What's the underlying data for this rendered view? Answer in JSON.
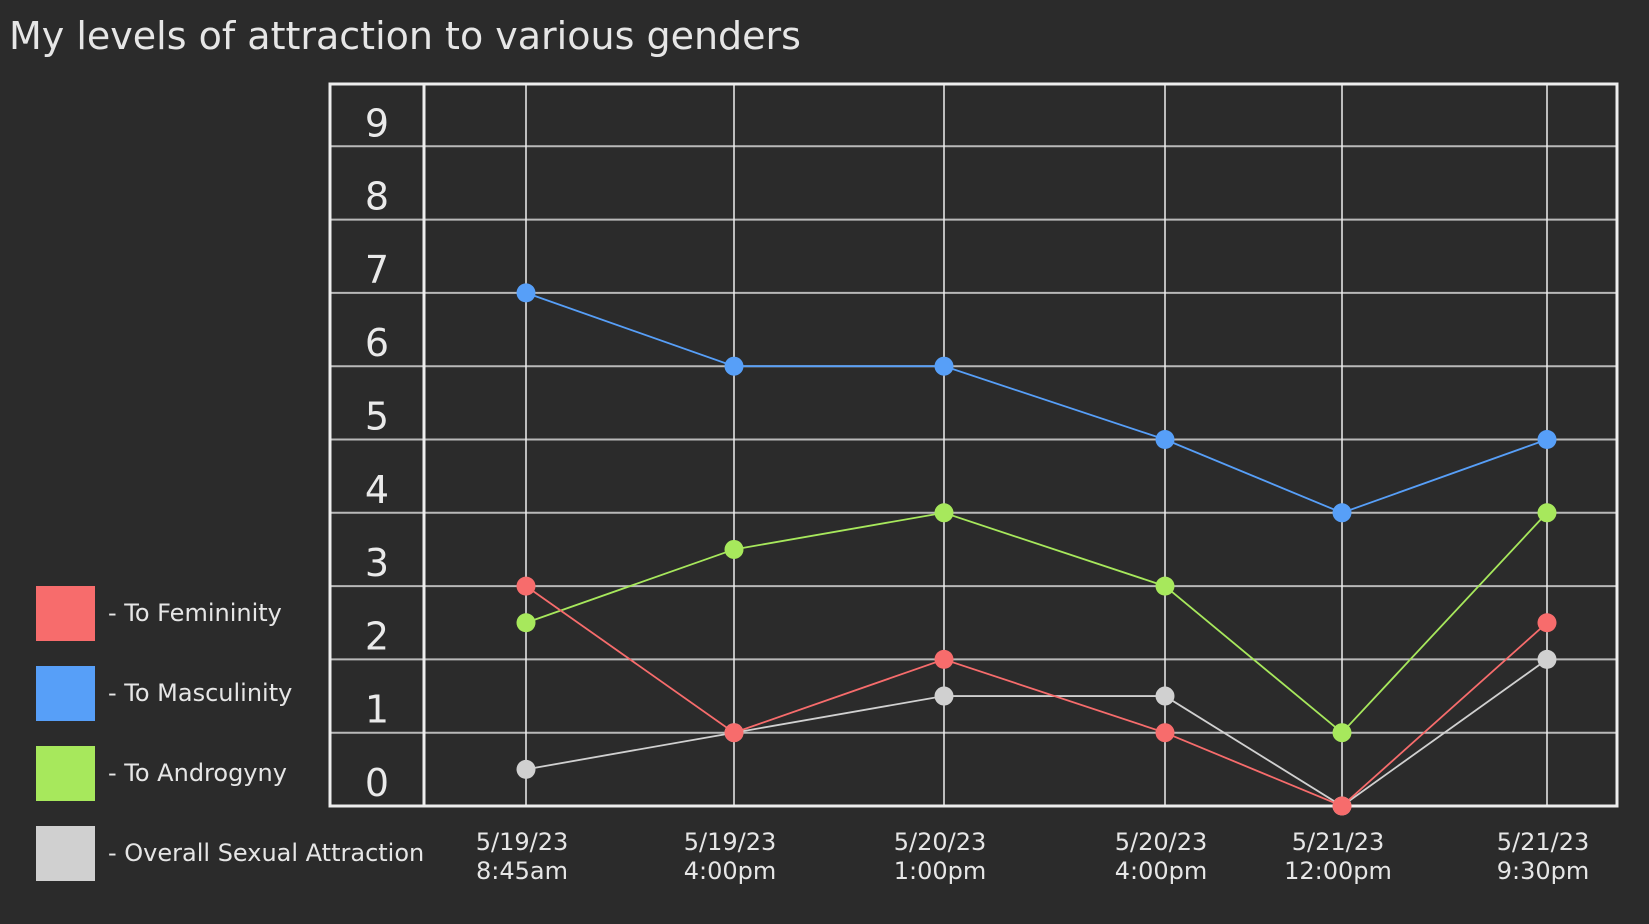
{
  "title": "My levels of attraction to various genders",
  "chart_data": {
    "type": "line",
    "title": "My levels of attraction to various genders",
    "xlabel": "",
    "ylabel": "",
    "ylim": [
      0,
      9
    ],
    "yticks": [
      "0",
      "1",
      "2",
      "3",
      "4",
      "5",
      "6",
      "7",
      "8",
      "9"
    ],
    "categories": [
      [
        "5/19/23",
        "8:45am"
      ],
      [
        "5/19/23",
        "4:00pm"
      ],
      [
        "5/20/23",
        "1:00pm"
      ],
      [
        "5/20/23",
        "4:00pm"
      ],
      [
        "5/21/23",
        "12:00pm"
      ],
      [
        "5/21/23",
        "9:30pm"
      ]
    ],
    "grid": true,
    "legend_position": "left",
    "series": [
      {
        "name": "- To Femininity",
        "color": "#f76c6c",
        "values": [
          3,
          1,
          2,
          1,
          0,
          2.5
        ]
      },
      {
        "name": "- To Masculinity",
        "color": "#579ff8",
        "values": [
          7,
          6,
          6,
          5,
          4,
          5
        ]
      },
      {
        "name": "- To Androgyny",
        "color": "#a7e85c",
        "values": [
          2.5,
          3.5,
          4,
          3,
          1,
          4
        ]
      },
      {
        "name": "- Overall Sexual Attraction",
        "color": "#d0d0d0",
        "values": [
          0.5,
          1,
          1.5,
          1.5,
          0,
          2
        ]
      }
    ]
  }
}
